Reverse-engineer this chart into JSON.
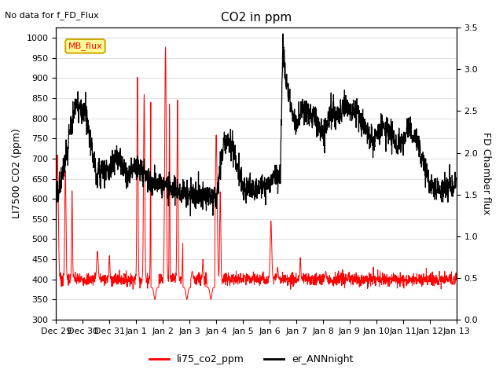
{
  "title": "CO2 in ppm",
  "subtitle": "No data for f_FD_Flux",
  "ylabel_left": "LI7500 CO2 (ppm)",
  "ylabel_right": "FD Chamber flux",
  "ylim_left": [
    300,
    1025
  ],
  "ylim_right": [
    0.0,
    3.5
  ],
  "yticks_left": [
    300,
    350,
    400,
    450,
    500,
    550,
    600,
    650,
    700,
    750,
    800,
    850,
    900,
    950,
    1000
  ],
  "yticks_right": [
    0.0,
    0.5,
    1.0,
    1.5,
    2.0,
    2.5,
    3.0,
    3.5
  ],
  "legend_label_red": "li75_co2_ppm",
  "legend_label_black": "er_ANNnight",
  "inset_label": "MB_flux",
  "color_red": "#ff0000",
  "color_black": "#000000",
  "color_inset_bg": "#ffff99",
  "xtick_labels": [
    "Dec 29",
    "Dec 30",
    "Dec 31",
    "Jan 1",
    "Jan 2",
    "Jan 3",
    "Jan 4",
    "Jan 5",
    "Jan 6",
    "Jan 7",
    "Jan 8",
    "Jan 9",
    "Jan 10",
    "Jan 11",
    "Jan 12",
    "Jan 13"
  ],
  "n_points": 2000,
  "random_seed": 7
}
